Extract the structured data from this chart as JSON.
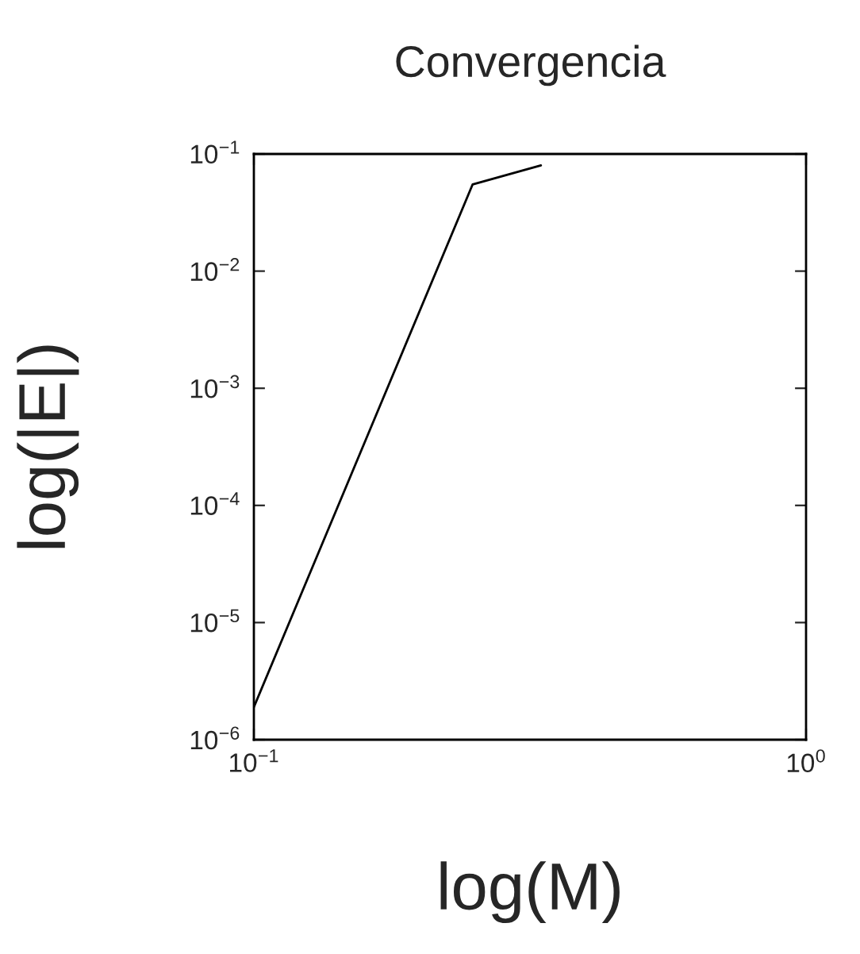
{
  "chart_data": {
    "type": "line",
    "title": "Convergencia",
    "xlabel": "log(M)",
    "ylabel": "log(|E|)",
    "x": [
      0.1,
      0.249,
      0.331
    ],
    "series": [
      {
        "color": "#000000",
        "values": [
          1.9e-06,
          0.055,
          0.08
        ]
      }
    ],
    "log": "xy",
    "grid": false,
    "legend": false,
    "marker": "none",
    "line_style": "solid",
    "xlim": [
      0.1,
      1
    ],
    "ylim": [
      1e-06,
      0.1
    ],
    "xticks": [
      {
        "value": 0.1,
        "label": "10$^{−1}$"
      },
      {
        "value": 1,
        "label": "10$^{0}$"
      }
    ],
    "yticks": [
      {
        "value": 1e-06,
        "label": "10$^{−6}$"
      },
      {
        "value": 1e-05,
        "label": "10$^{−5}$"
      },
      {
        "value": 0.0001,
        "label": "10$^{−4}$"
      },
      {
        "value": 0.001,
        "label": "10$^{−3}$"
      },
      {
        "value": 0.01,
        "label": "10$^{−2}$"
      },
      {
        "value": 0.1,
        "label": "10$^{−1}$"
      }
    ]
  }
}
